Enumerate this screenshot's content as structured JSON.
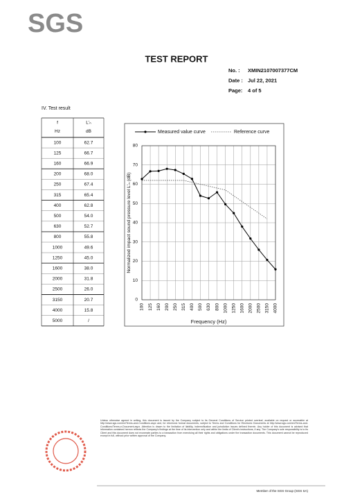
{
  "header": {
    "logo": "SGS",
    "title": "TEST REPORT",
    "meta": [
      [
        "No. :",
        "XMIN2107007377CM"
      ],
      [
        "Date :",
        "Jul 22, 2021"
      ],
      [
        "Page:",
        "4 of 5"
      ]
    ]
  },
  "section": "IV.   Test result",
  "table": {
    "header": [
      [
        "f",
        "L'ₙ"
      ],
      [
        "Hz",
        "dB"
      ]
    ],
    "rows": [
      [
        "100",
        "62.7"
      ],
      [
        "125",
        "66.7"
      ],
      [
        "160",
        "66.9"
      ],
      [
        "200",
        "68.0"
      ],
      [
        "250",
        "67.4"
      ],
      [
        "315",
        "65.4"
      ],
      [
        "400",
        "62.8"
      ],
      [
        "500",
        "54.0"
      ],
      [
        "630",
        "52.7"
      ],
      [
        "800",
        "55.8"
      ],
      [
        "1000",
        "49.6"
      ],
      [
        "1250",
        "45.0"
      ],
      [
        "1600",
        "38.0"
      ],
      [
        "2000",
        "31.8"
      ],
      [
        "2500",
        "26.0"
      ],
      [
        "3150",
        "20.7"
      ],
      [
        "4000",
        "15.8"
      ],
      [
        "5000",
        "/"
      ]
    ]
  },
  "chart_data": {
    "type": "line",
    "categories": [
      "100",
      "125",
      "160",
      "200",
      "250",
      "315",
      "400",
      "500",
      "630",
      "800",
      "1000",
      "1250",
      "1600",
      "2000",
      "2500",
      "3150",
      "4000"
    ],
    "series": [
      {
        "name": "Measured value curve",
        "color": "#000000",
        "values": [
          62.7,
          66.7,
          66.9,
          68.0,
          67.4,
          65.4,
          62.8,
          54.0,
          52.7,
          55.8,
          49.6,
          45.0,
          38.0,
          31.8,
          26.0,
          20.7,
          15.8
        ]
      },
      {
        "name": "Reference curve",
        "color": "#555555",
        "values": [
          62,
          62,
          62,
          62,
          62,
          62,
          61,
          60,
          59,
          58,
          57,
          54,
          51,
          48,
          45,
          42,
          null
        ]
      }
    ],
    "x_label": "Frequency (Hz)",
    "y_label": "Normalized impact sound pressure level  L'ₙ (dB)",
    "ylim": [
      0,
      80
    ],
    "yticks": [
      0,
      10,
      20,
      30,
      40,
      50,
      60,
      70,
      80
    ],
    "grid": true
  },
  "footer": {
    "disclaimer": "Unless otherwise agreed in writing, this document is issued by the Company subject to its General Conditions of Service printed overleaf, available on request or accessible at http://www.sgs.com/en/Terms-and-Conditions.aspx and, for electronic format documents, subject to Terms and Conditions for Electronic Documents at http://www.sgs.com/en/Terms-and-Conditions/Terms-e-Document.aspx. Attention is drawn to the limitation of liability, indemnification and jurisdiction issues defined therein. Any holder of this document is advised that information contained hereon reflects the Company's findings at the time of its intervention only and within the limits of Client's instructions, if any. The Company's sole responsibility is to its Client and this document does not exonerate parties to a transaction from exercising all their rights and obligations under the transaction documents. This document cannot be reproduced except in full, without prior written approval of the Company.",
    "member": "Member of the SGS Group (SGS SA)"
  }
}
